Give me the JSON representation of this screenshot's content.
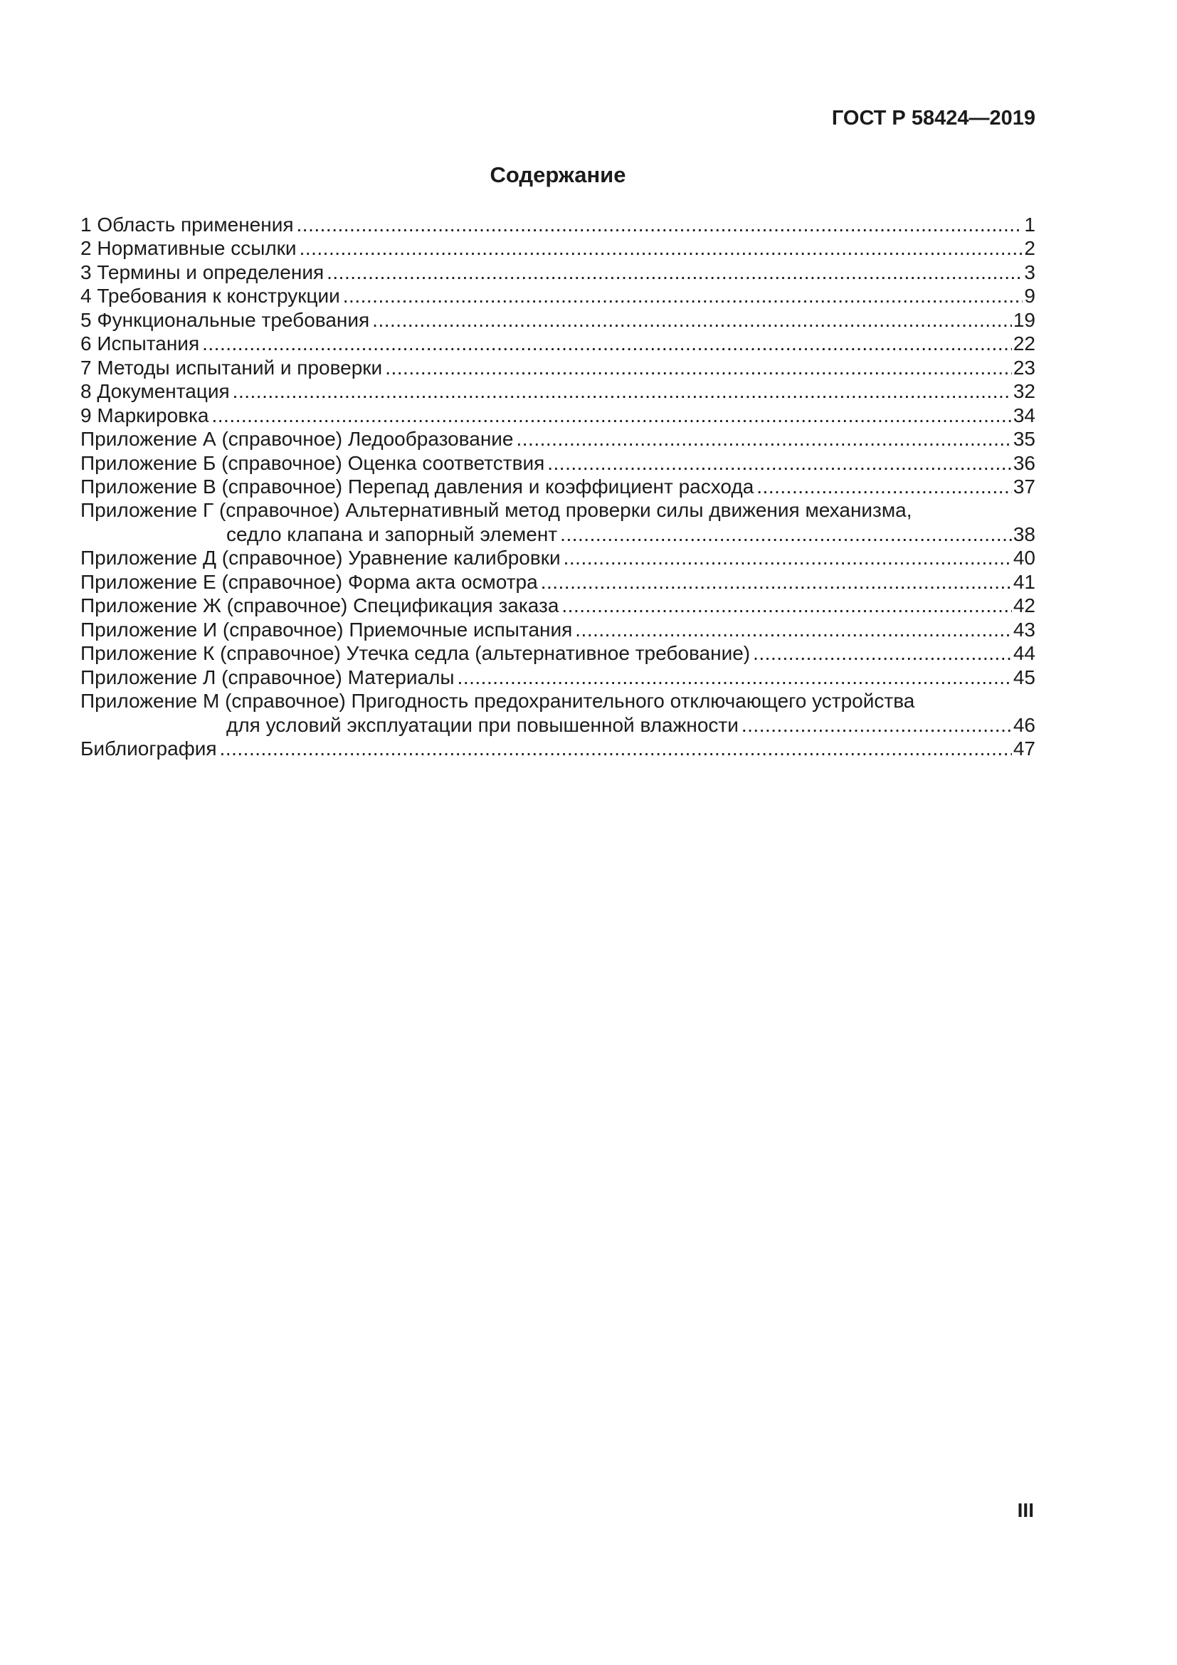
{
  "page": {
    "header_code": "ГОСТ Р 58424—2019",
    "title": "Содержание",
    "folio": "III"
  },
  "toc": {
    "entries": [
      {
        "text": "1 Область применения",
        "page": "1"
      },
      {
        "text": "2 Нормативные ссылки",
        "page": "2"
      },
      {
        "text": "3 Термины и определения",
        "page": "3"
      },
      {
        "text": "4 Требования к конструкции",
        "page": "9"
      },
      {
        "text": "5 Функциональные требования",
        "page": "19"
      },
      {
        "text": "6 Испытания",
        "page": "22"
      },
      {
        "text": "7 Методы испытаний и проверки",
        "page": "23"
      },
      {
        "text": "8 Документация",
        "page": "32"
      },
      {
        "text": "9 Маркировка",
        "page": "34"
      },
      {
        "text": "Приложение А (справочное) Ледообразование",
        "page": "35"
      },
      {
        "text": "Приложение Б (справочное) Оценка соответствия",
        "page": "36"
      },
      {
        "text": "Приложение В (справочное) Перепад давления и коэффициент расхода",
        "page": "37"
      },
      {
        "text": "Приложение Г (справочное) Альтернативный метод проверки силы движения механизма,",
        "text2": "седло клапана и запорный элемент",
        "page": "38"
      },
      {
        "text": "Приложение Д (справочное) Уравнение калибровки",
        "page": "40"
      },
      {
        "text": "Приложение Е (справочное) Форма акта осмотра",
        "page": "41"
      },
      {
        "text": "Приложение Ж (справочное) Спецификация заказа",
        "page": "42"
      },
      {
        "text": "Приложение И (справочное) Приемочные испытания",
        "page": "43"
      },
      {
        "text": "Приложение К (справочное) Утечка седла (альтернативное требование)",
        "page": "44"
      },
      {
        "text": "Приложение Л (справочное) Материалы",
        "page": "45"
      },
      {
        "text": "Приложение М (справочное) Пригодность предохранительного отключающего устройства",
        "text2": "для условий эксплуатации при повышенной влажности",
        "page": "46"
      },
      {
        "text": "Библиография",
        "page": "47"
      }
    ]
  }
}
